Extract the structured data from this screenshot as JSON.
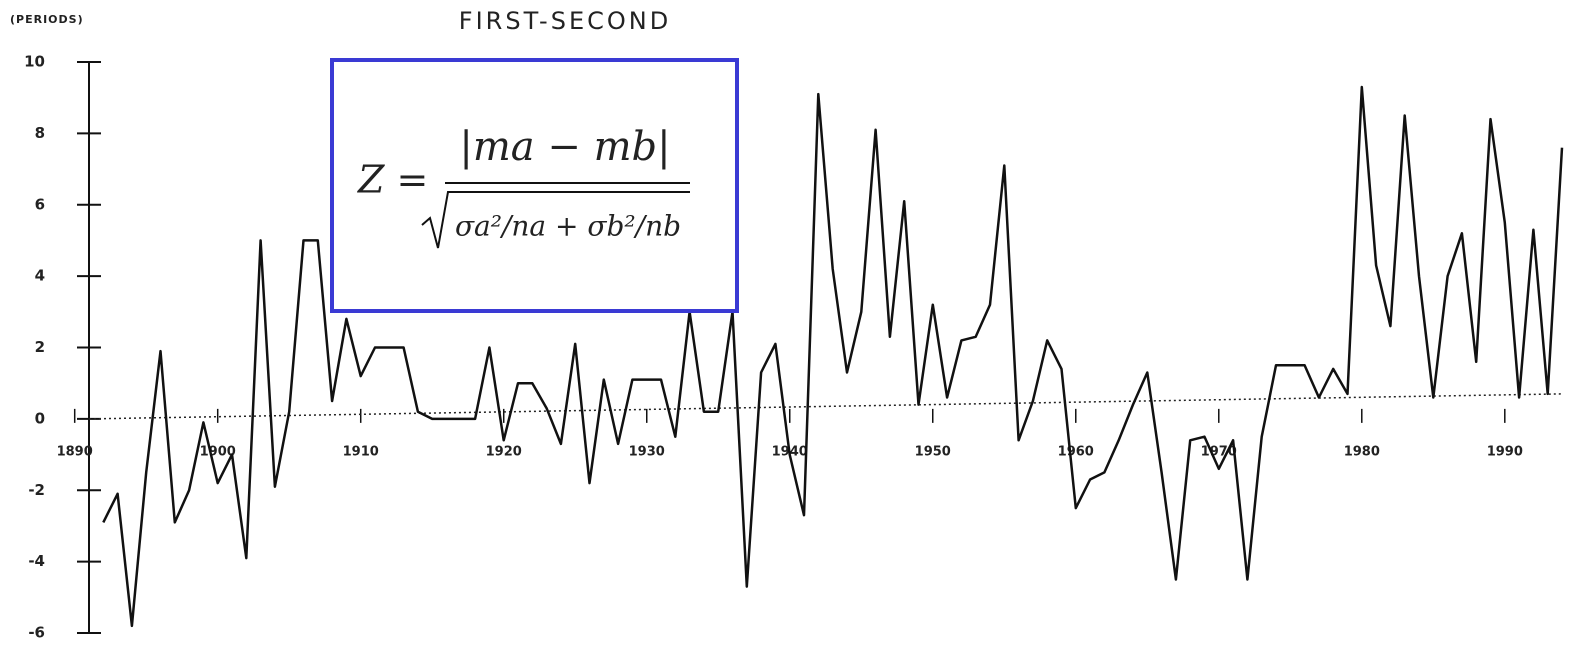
{
  "chart_data": {
    "type": "line",
    "title": "FIRST-SECOND",
    "y_label": "(PERIODS)",
    "x": [
      1892,
      1893,
      1894,
      1895,
      1896,
      1897,
      1898,
      1899,
      1900,
      1901,
      1902,
      1903,
      1904,
      1905,
      1906,
      1907,
      1908,
      1909,
      1910,
      1911,
      1912,
      1913,
      1914,
      1915,
      1916,
      1917,
      1918,
      1919,
      1920,
      1921,
      1922,
      1923,
      1924,
      1925,
      1926,
      1927,
      1928,
      1929,
      1930,
      1931,
      1932,
      1933,
      1934,
      1935,
      1936,
      1937,
      1938,
      1939,
      1940,
      1941,
      1942,
      1943,
      1944,
      1945,
      1946,
      1947,
      1948,
      1949,
      1950,
      1951,
      1952,
      1953,
      1954,
      1955,
      1956,
      1957,
      1958,
      1959,
      1960,
      1961,
      1962,
      1963,
      1964,
      1965,
      1966,
      1967,
      1968,
      1969,
      1970,
      1971,
      1972,
      1973,
      1974,
      1975,
      1976,
      1977,
      1978,
      1979,
      1980,
      1981,
      1982,
      1983,
      1984,
      1985,
      1986,
      1987,
      1988,
      1989,
      1990,
      1991,
      1992,
      1993,
      1994
    ],
    "series": [
      {
        "color": "#111111",
        "values": [
          -2.9,
          -2.1,
          -5.8,
          -1.5,
          1.9,
          -2.9,
          -2.0,
          -0.1,
          -1.8,
          -1.0,
          -3.9,
          5.0,
          -1.9,
          0.2,
          5.0,
          5.0,
          0.5,
          2.8,
          1.2,
          2.0,
          2.0,
          2.0,
          0.2,
          0,
          0,
          0,
          0,
          2.0,
          -0.6,
          1.0,
          1.0,
          0.3,
          -0.7,
          2.1,
          -1.8,
          1.1,
          -0.7,
          1.1,
          1.1,
          1.1,
          -0.5,
          3.0,
          0.2,
          0.2,
          3.0,
          -4.7,
          1.3,
          2.1,
          -1.0,
          -2.7,
          9.1,
          4.2,
          1.3,
          3.0,
          8.1,
          2.3,
          6.1,
          0.4,
          3.2,
          0.6,
          2.2,
          2.3,
          3.2,
          7.1,
          -0.6,
          0.5,
          2.2,
          1.4,
          -2.5,
          -1.7,
          -1.5,
          -0.6,
          0.4,
          1.3,
          -1.5,
          -4.5,
          -0.6,
          -0.5,
          -1.4,
          -0.6,
          -4.5,
          -0.5,
          1.5,
          1.5,
          1.5,
          0.6,
          1.4,
          0.7,
          9.3,
          4.3,
          2.6,
          8.5,
          4.0,
          0.6,
          4.0,
          5.2,
          1.6,
          8.4,
          5.5,
          0.6,
          5.3,
          0.7,
          7.6
        ]
      }
    ],
    "trend": {
      "x": [
        1891,
        1994
      ],
      "values": [
        0,
        0.7
      ]
    },
    "xlim": [
      1891,
      1994
    ],
    "ylim": [
      -6,
      10
    ],
    "xticks": [
      1890,
      1900,
      1910,
      1920,
      1930,
      1940,
      1950,
      1960,
      1970,
      1980,
      1990
    ],
    "yticks": [
      -6,
      -4,
      -2,
      0,
      2,
      4,
      6,
      8,
      10
    ],
    "formula": {
      "lhs": "Z =",
      "numerator": "|ma − mb|",
      "denominator": "σa²/na + σb²/nb"
    }
  }
}
